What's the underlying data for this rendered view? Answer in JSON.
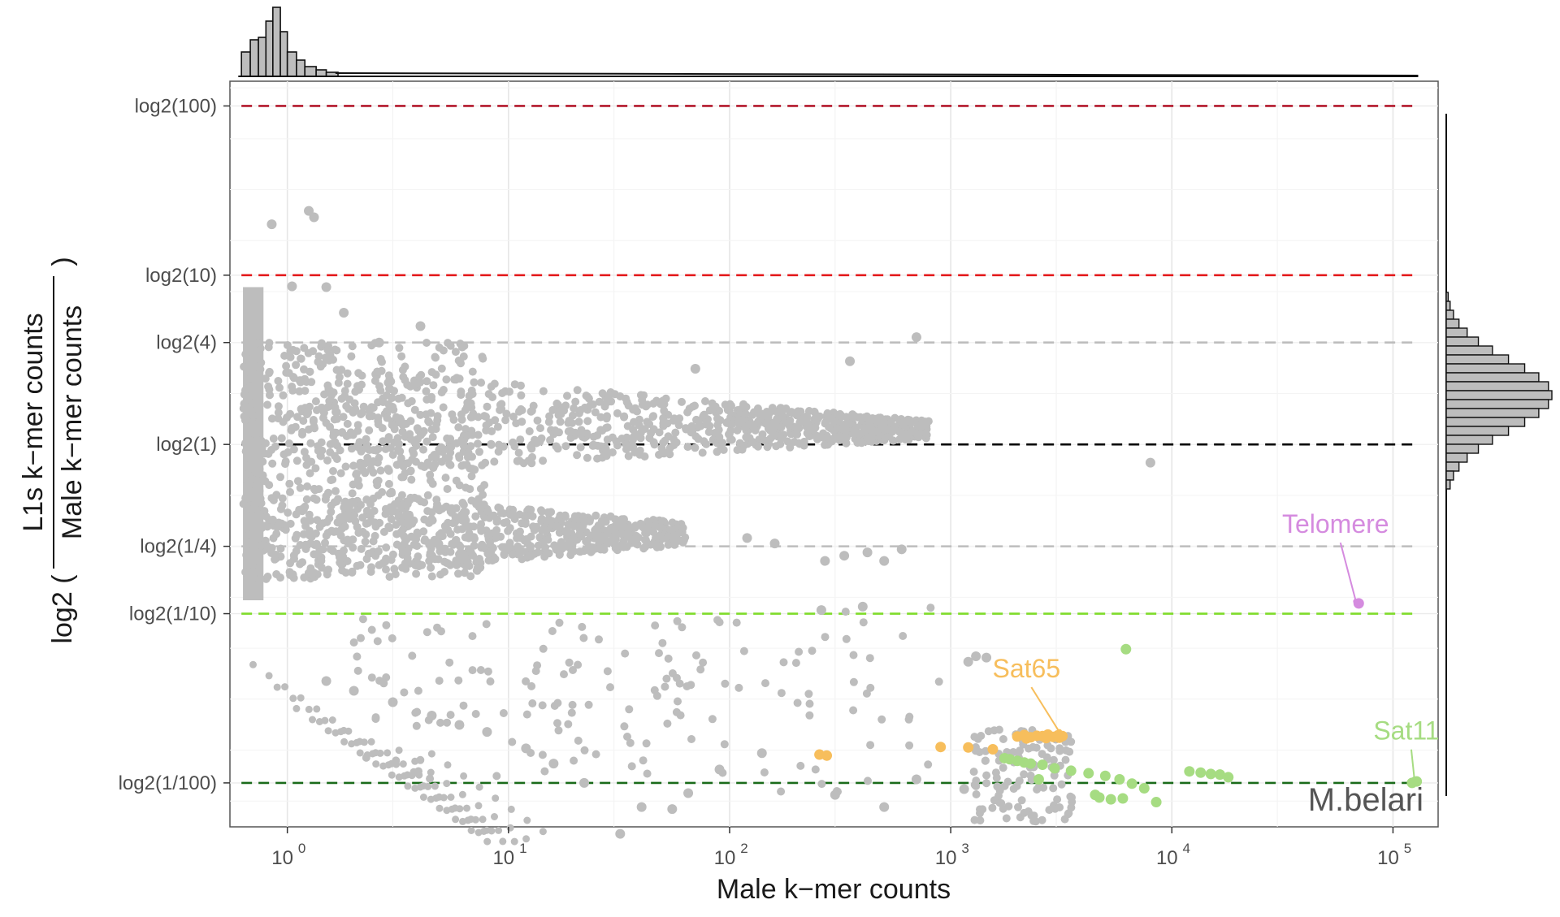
{
  "chart_data": {
    "type": "scatter",
    "title": "",
    "species_label": "M.belari",
    "xlabel": "Male k−mer counts",
    "ylabel": {
      "prefix": "log2 (",
      "numerator": "L1s k−mer counts",
      "denominator": "Male k−mer counts",
      "suffix": ")"
    },
    "x_scale": "log10",
    "y_scale": "log2",
    "xlim": [
      0.55,
      160000
    ],
    "ylim": [
      0.0055,
      140
    ],
    "x_ticks": [
      {
        "value": 1,
        "base": "10",
        "exp": "0"
      },
      {
        "value": 10,
        "base": "10",
        "exp": "1"
      },
      {
        "value": 100,
        "base": "10",
        "exp": "2"
      },
      {
        "value": 1000,
        "base": "10",
        "exp": "3"
      },
      {
        "value": 10000,
        "base": "10",
        "exp": "4"
      },
      {
        "value": 100000,
        "base": "10",
        "exp": "5"
      }
    ],
    "y_ticks": [
      {
        "value": 100,
        "label": "log2(100)"
      },
      {
        "value": 10,
        "label": "log2(10)"
      },
      {
        "value": 4,
        "label": "log2(4)"
      },
      {
        "value": 1,
        "label": "log2(1)"
      },
      {
        "value": 0.25,
        "label": "log2(1/4)"
      },
      {
        "value": 0.1,
        "label": "log2(1/10)"
      },
      {
        "value": 0.01,
        "label": "log2(1/100)"
      }
    ],
    "reference_lines": [
      {
        "y": 100,
        "color": "#b2182b"
      },
      {
        "y": 10,
        "color": "#e31a1c"
      },
      {
        "y": 4,
        "color": "#bdbdbd"
      },
      {
        "y": 1,
        "color": "#000000"
      },
      {
        "y": 0.25,
        "color": "#bdbdbd"
      },
      {
        "y": 0.1,
        "color": "#7fdc2a"
      },
      {
        "y": 0.01,
        "color": "#1a6b1a"
      }
    ],
    "series": [
      {
        "name": "Sat65",
        "color": "#f7be5c",
        "points": [
          [
            2000,
            0.0188
          ],
          [
            2150,
            0.0192
          ],
          [
            2300,
            0.0186
          ],
          [
            2450,
            0.019
          ],
          [
            2600,
            0.0189
          ],
          [
            2750,
            0.0193
          ],
          [
            2900,
            0.0187
          ],
          [
            3050,
            0.0191
          ],
          [
            3200,
            0.0189
          ],
          [
            2200,
            0.0183
          ],
          [
            2700,
            0.0184
          ],
          [
            3100,
            0.0185
          ],
          [
            255,
            0.0147
          ],
          [
            275,
            0.0145
          ],
          [
            900,
            0.0163
          ],
          [
            1200,
            0.0162
          ],
          [
            1550,
            0.0158
          ]
        ],
        "label_at": [
          2200,
          0.042
        ],
        "arrow_to": [
          3100,
          0.02
        ]
      },
      {
        "name": "Sat11",
        "color": "#a6dc82",
        "points": [
          [
            1750,
            0.014
          ],
          [
            1850,
            0.0138
          ],
          [
            2000,
            0.0135
          ],
          [
            2150,
            0.0132
          ],
          [
            2300,
            0.013
          ],
          [
            2600,
            0.0128
          ],
          [
            2950,
            0.0122
          ],
          [
            3500,
            0.0118
          ],
          [
            4200,
            0.0114
          ],
          [
            5000,
            0.011
          ],
          [
            5800,
            0.0105
          ],
          [
            6600,
            0.0099
          ],
          [
            7500,
            0.0093
          ],
          [
            6000,
            0.0081
          ],
          [
            5300,
            0.008
          ],
          [
            4700,
            0.0082
          ],
          [
            8500,
            0.0077
          ],
          [
            12000,
            0.0117
          ],
          [
            13500,
            0.0115
          ],
          [
            15000,
            0.0113
          ],
          [
            16500,
            0.0112
          ],
          [
            18000,
            0.0108
          ],
          [
            6200,
            0.0617
          ],
          [
            122000,
            0.01
          ],
          [
            128000,
            0.0102
          ],
          [
            2500,
            0.0105
          ],
          [
            4500,
            0.0085
          ]
        ],
        "label_at": [
          115000,
          0.018
        ],
        "arrow_to": [
          125000,
          0.0105
        ]
      },
      {
        "name": "Telomere",
        "color": "#d58bdf",
        "points": [
          [
            70000,
            0.115
          ]
        ],
        "label_at": [
          55000,
          0.3
        ],
        "arrow_to": [
          68000,
          0.118
        ]
      }
    ],
    "grey_points": [
      [
        0.85,
        20
      ],
      [
        1.25,
        24
      ],
      [
        1.32,
        22
      ],
      [
        1.05,
        8.6
      ],
      [
        1.5,
        8.5
      ],
      [
        1.8,
        6
      ],
      [
        2.6,
        4
      ],
      [
        4,
        5
      ],
      [
        700,
        4.3
      ],
      [
        350,
        3.1
      ],
      [
        70,
        2.8
      ],
      [
        8000,
        0.78
      ],
      [
        1450,
        0.055
      ],
      [
        1200,
        0.052
      ],
      [
        1300,
        0.056
      ],
      [
        400,
        0.11
      ],
      [
        260,
        0.105
      ],
      [
        330,
        0.22
      ],
      [
        420,
        0.23
      ],
      [
        500,
        0.205
      ],
      [
        600,
        0.24
      ],
      [
        270,
        0.205
      ],
      [
        120,
        0.28
      ],
      [
        160,
        0.26
      ],
      [
        1.5,
        0.04
      ],
      [
        2,
        0.035
      ],
      [
        3,
        0.03
      ],
      [
        4.5,
        0.025
      ],
      [
        6,
        0.022
      ],
      [
        8,
        0.02
      ],
      [
        12,
        0.016
      ],
      [
        16,
        0.013
      ],
      [
        22,
        0.01
      ],
      [
        32,
        0.005
      ],
      [
        40,
        0.0072
      ],
      [
        55,
        0.007
      ],
      [
        65,
        0.0087
      ],
      [
        90,
        0.012
      ],
      [
        140,
        0.015
      ],
      [
        300,
        0.0085
      ],
      [
        500,
        0.0072
      ],
      [
        700,
        0.0105
      ],
      [
        1150,
        0.0092
      ]
    ],
    "grey_color": "#bdbdbd",
    "marginal_histograms": {
      "top": "Male k−mer counts",
      "right": "log2 ratio"
    }
  }
}
